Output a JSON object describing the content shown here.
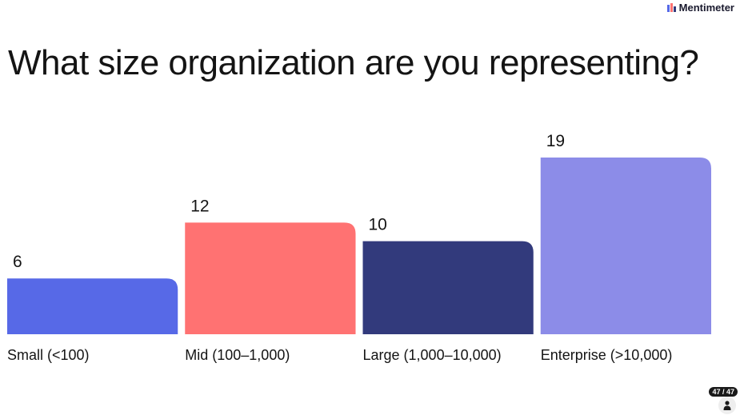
{
  "brand": {
    "name": "Mentimeter"
  },
  "question": "What size organization are you representing?",
  "counter": "47 / 47",
  "colors": {
    "small": "#5769e7",
    "mid": "#ff7272",
    "large": "#323a7c",
    "enterprise": "#8c8ce8"
  },
  "chart_data": {
    "type": "bar",
    "categories": [
      "Small (<100)",
      "Mid (100–1,000)",
      "Large (1,000–10,000)",
      "Enterprise (>10,000)"
    ],
    "values": [
      6,
      12,
      10,
      19
    ],
    "colors": [
      "#5769e7",
      "#ff7272",
      "#323a7c",
      "#8c8ce8"
    ],
    "title": "What size organization are you representing?",
    "xlabel": "",
    "ylabel": "",
    "ylim": [
      0,
      19
    ],
    "grid": false,
    "legend": "none"
  }
}
